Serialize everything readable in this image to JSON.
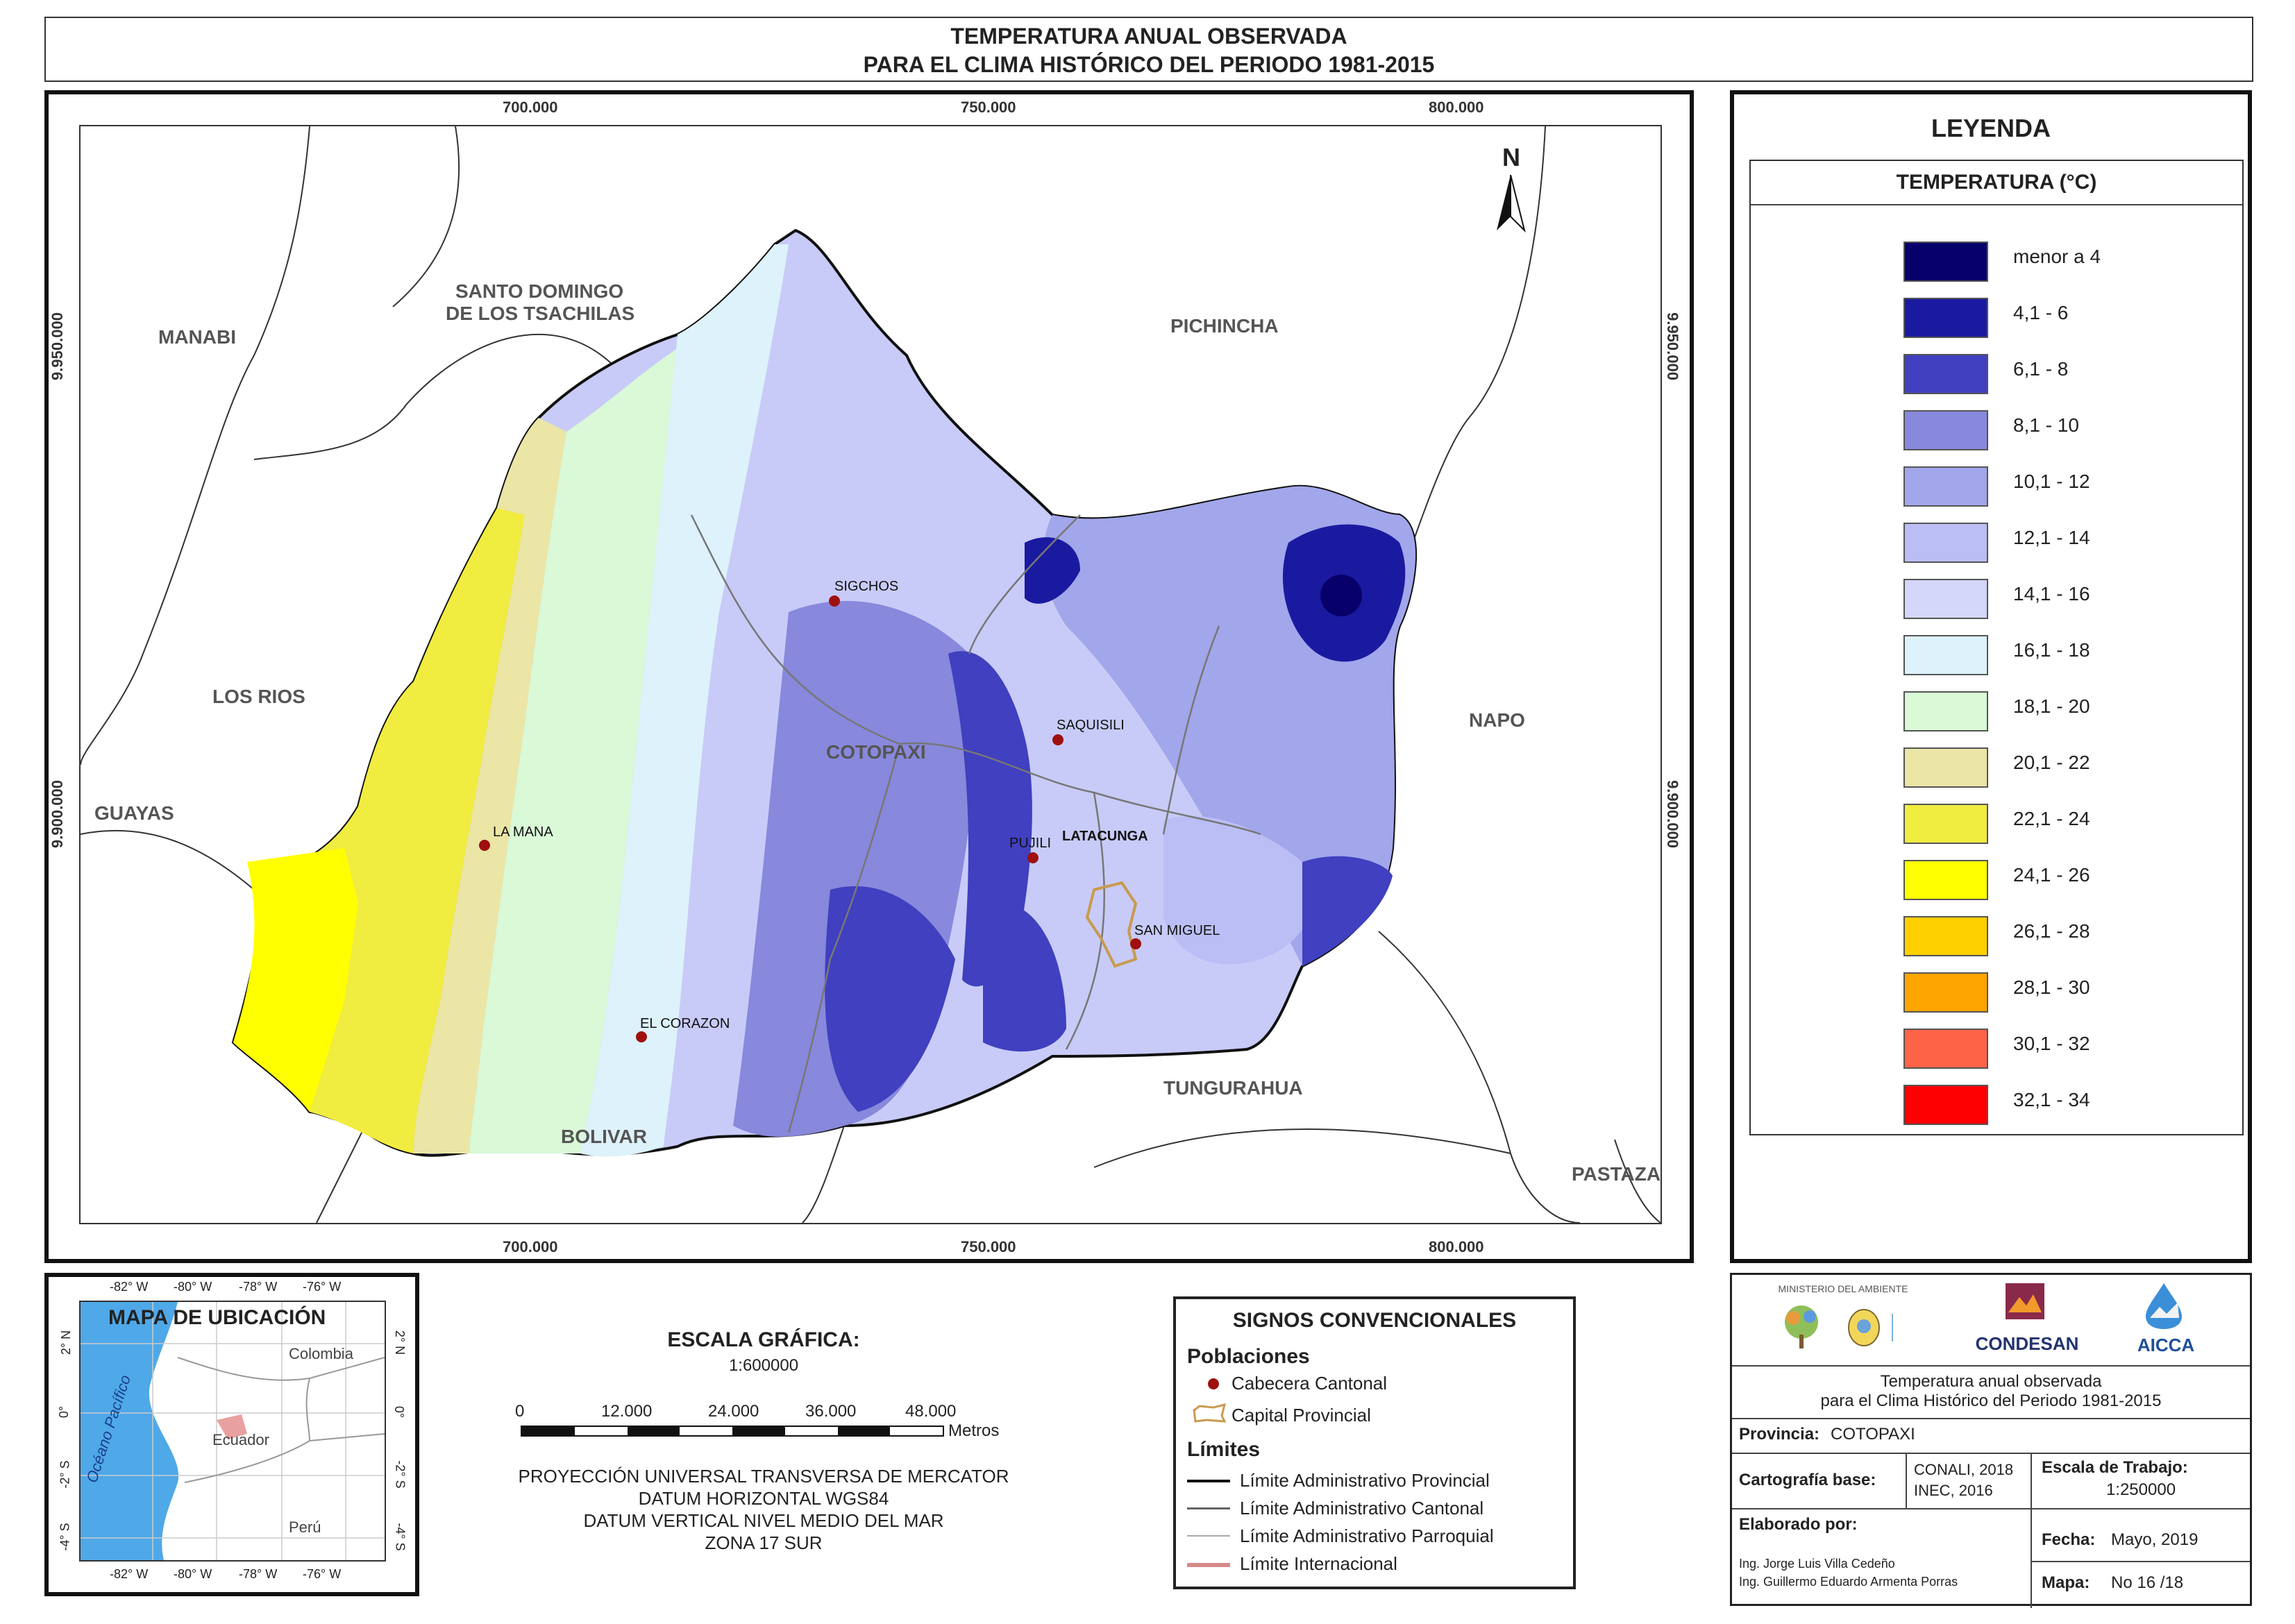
{
  "title": {
    "line1": "TEMPERATURA ANUAL OBSERVADA",
    "line2": "PARA EL CLIMA HISTÓRICO DEL PERIODO 1981-2015"
  },
  "map": {
    "north_label": "N",
    "top_ticks": [
      "700.000",
      "750.000",
      "800.000"
    ],
    "bottom_ticks": [
      "700.000",
      "750.000",
      "800.000"
    ],
    "left_ticks": [
      "9.950.000",
      "9.900.000"
    ],
    "right_ticks": [
      "9.950.000",
      "9.900.000"
    ],
    "regions": {
      "manabi": "MANABI",
      "santo_domingo_1": "SANTO DOMINGO",
      "santo_domingo_2": "DE LOS TSACHILAS",
      "pichincha": "PICHINCHA",
      "los_rios": "LOS RIOS",
      "guayas": "GUAYAS",
      "napo": "NAPO",
      "cotopaxi": "COTOPAXI",
      "bolivar": "BOLIVAR",
      "tungurahua": "TUNGURAHUA",
      "pastaza": "PASTAZA"
    },
    "towns": {
      "sigchos": "SIGCHOS",
      "saquisili": "SAQUISILI",
      "la_mana": "LA MANA",
      "pujili": "PUJILI",
      "latacunga": "LATACUNGA",
      "san_miguel": "SAN MIGUEL",
      "el_corazon": "EL CORAZON"
    }
  },
  "legend": {
    "title": "LEYENDA",
    "subtitle": "TEMPERATURA (°C)",
    "items": [
      {
        "label": "menor a 4",
        "color": "#08006a"
      },
      {
        "label": "4,1 - 6",
        "color": "#1a1aa0"
      },
      {
        "label": "6,1 - 8",
        "color": "#4040c0"
      },
      {
        "label": "8,1 - 10",
        "color": "#8888dc"
      },
      {
        "label": "10,1 - 12",
        "color": "#a2a6ea"
      },
      {
        "label": "12,1 - 14",
        "color": "#bbbef5"
      },
      {
        "label": "14,1 - 16",
        "color": "#d4d6fa"
      },
      {
        "label": "16,1 - 18",
        "color": "#ddf2fb"
      },
      {
        "label": "18,1 - 20",
        "color": "#d9f9d7"
      },
      {
        "label": "20,1 - 22",
        "color": "#ebe5a6"
      },
      {
        "label": "22,1 - 24",
        "color": "#f0ec40"
      },
      {
        "label": "24,1 - 26",
        "color": "#ffff00"
      },
      {
        "label": "26,1 - 28",
        "color": "#ffd000"
      },
      {
        "label": "28,1 - 30",
        "color": "#ffa500"
      },
      {
        "label": "30,1 - 32",
        "color": "#ff6347"
      },
      {
        "label": "32,1 - 34",
        "color": "#ff0000"
      }
    ]
  },
  "location_map": {
    "title": "MAPA DE UBICACIÓN",
    "lon_ticks": [
      "-82° W",
      "-80° W",
      "-78° W",
      "-76° W"
    ],
    "lat_ticks": [
      "2° N",
      "0°",
      "-2° S",
      "-4° S"
    ],
    "colombia": "Colombia",
    "ecuador": "Ecuador",
    "peru": "Perú",
    "ocean": "Océano Pacífico"
  },
  "scale": {
    "title": "ESCALA GRÁFICA:",
    "ratio": "1:600000",
    "ticks": [
      "0",
      "12.000",
      "24.000",
      "36.000",
      "48.000"
    ],
    "unit": "Metros",
    "proj1": "PROYECCIÓN UNIVERSAL TRANSVERSA DE MERCATOR",
    "proj2": "DATUM HORIZONTAL WGS84",
    "proj3": "DATUM VERTICAL NIVEL MEDIO DEL MAR",
    "proj4": "ZONA 17 SUR"
  },
  "signs": {
    "title": "SIGNOS CONVENCIONALES",
    "poblaciones": "Poblaciones",
    "cabecera": "Cabecera Cantonal",
    "capital": "Capital Provincial",
    "limites": "Límites",
    "provincial": "Límite Administrativo Provincial",
    "cantonal": "Límite Administrativo Cantonal",
    "parroquial": "Límite Administrativo Parroquial",
    "internacional": "Límite Internacional"
  },
  "info": {
    "logo_ministerio": "MINISTERIO DEL AMBIENTE",
    "logo_condesan": "CONDESAN",
    "logo_aicca": "AICCA",
    "desc1": "Temperatura anual observada",
    "desc2": "para el Clima Histórico del Periodo 1981-2015",
    "provincia_label": "Provincia:",
    "provincia_value": "COTOPAXI",
    "cartografia_label": "Cartografía base:",
    "cartografia_value1": "CONALI, 2018",
    "cartografia_value2": "INEC, 2016",
    "escala_label": "Escala de Trabajo:",
    "escala_value": "1:250000",
    "elaborado_label": "Elaborado por:",
    "autor1": "Ing. Jorge Luis Villa Cedeño",
    "autor2": "Ing. Guillermo Eduardo Armenta Porras",
    "fecha_label": "Fecha:",
    "fecha_value": "Mayo, 2019",
    "mapa_label": "Mapa:",
    "mapa_value": "No 16 /18"
  }
}
